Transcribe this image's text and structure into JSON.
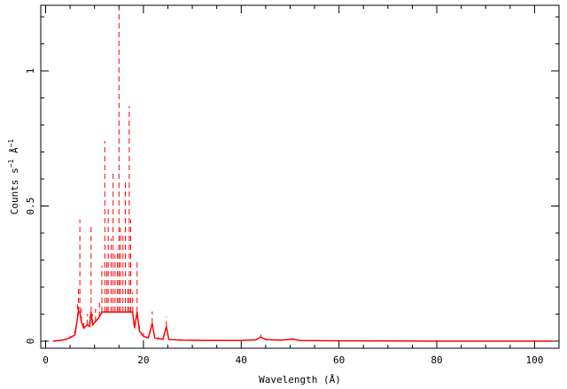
{
  "chart_data": {
    "type": "line",
    "xlabel": "Wavelength (Å)",
    "ylabel_parts": [
      "Counts s",
      "−1",
      " Å",
      "−1"
    ],
    "xlim": [
      0,
      104
    ],
    "ylim": [
      -0.02,
      1.25
    ],
    "x_ticks": [
      0,
      20,
      40,
      60,
      80,
      100
    ],
    "x_tick_labels": [
      "0",
      "20",
      "40",
      "60",
      "80",
      "100"
    ],
    "y_ticks": [
      0,
      0.5,
      1
    ],
    "y_tick_labels": [
      "0",
      "0.5",
      "1"
    ],
    "grid": false,
    "series": [
      {
        "color": "#ff0000",
        "style": "dashed-errorbars",
        "points": [
          [
            1.5,
            0.0
          ],
          [
            3,
            0.005
          ],
          [
            4,
            0.01
          ],
          [
            5,
            0.02
          ],
          [
            6,
            0.04
          ],
          [
            6.5,
            0.14
          ],
          [
            6.7,
            0.2
          ],
          [
            7,
            0.45
          ],
          [
            7.3,
            0.12
          ],
          [
            7.8,
            0.08
          ],
          [
            8.5,
            0.1
          ],
          [
            9,
            0.09
          ],
          [
            9.3,
            0.43
          ],
          [
            9.6,
            0.1
          ],
          [
            10.2,
            0.12
          ],
          [
            11,
            0.15
          ],
          [
            11.5,
            0.28
          ],
          [
            12.1,
            0.74
          ],
          [
            12.5,
            0.3
          ],
          [
            12.8,
            0.5
          ],
          [
            13.4,
            0.38
          ],
          [
            13.8,
            0.62
          ],
          [
            14.2,
            0.32
          ],
          [
            14.7,
            0.34
          ],
          [
            15.0,
            1.23
          ],
          [
            15.3,
            0.42
          ],
          [
            15.8,
            0.4
          ],
          [
            16.3,
            0.6
          ],
          [
            16.8,
            0.2
          ],
          [
            17.1,
            0.87
          ],
          [
            17.4,
            0.45
          ],
          [
            17.8,
            0.18
          ],
          [
            18.2,
            0.08
          ],
          [
            18.7,
            0.3
          ],
          [
            19.2,
            0.06
          ],
          [
            20,
            0.03
          ],
          [
            21,
            0.02
          ],
          [
            21.8,
            0.11
          ],
          [
            22.3,
            0.02
          ],
          [
            23,
            0.015
          ],
          [
            24,
            0.012
          ],
          [
            24.7,
            0.09
          ],
          [
            25.2,
            0.01
          ],
          [
            28,
            0.006
          ],
          [
            32,
            0.005
          ],
          [
            36,
            0.004
          ],
          [
            40,
            0.004
          ],
          [
            43,
            0.008
          ],
          [
            44,
            0.025
          ],
          [
            45,
            0.01
          ],
          [
            48,
            0.006
          ],
          [
            50.5,
            0.012
          ],
          [
            52,
            0.004
          ],
          [
            60,
            0.002
          ],
          [
            70,
            0.001
          ],
          [
            80,
            0.0
          ],
          [
            90,
            0.0
          ],
          [
            103.5,
            0.0
          ]
        ]
      }
    ]
  }
}
